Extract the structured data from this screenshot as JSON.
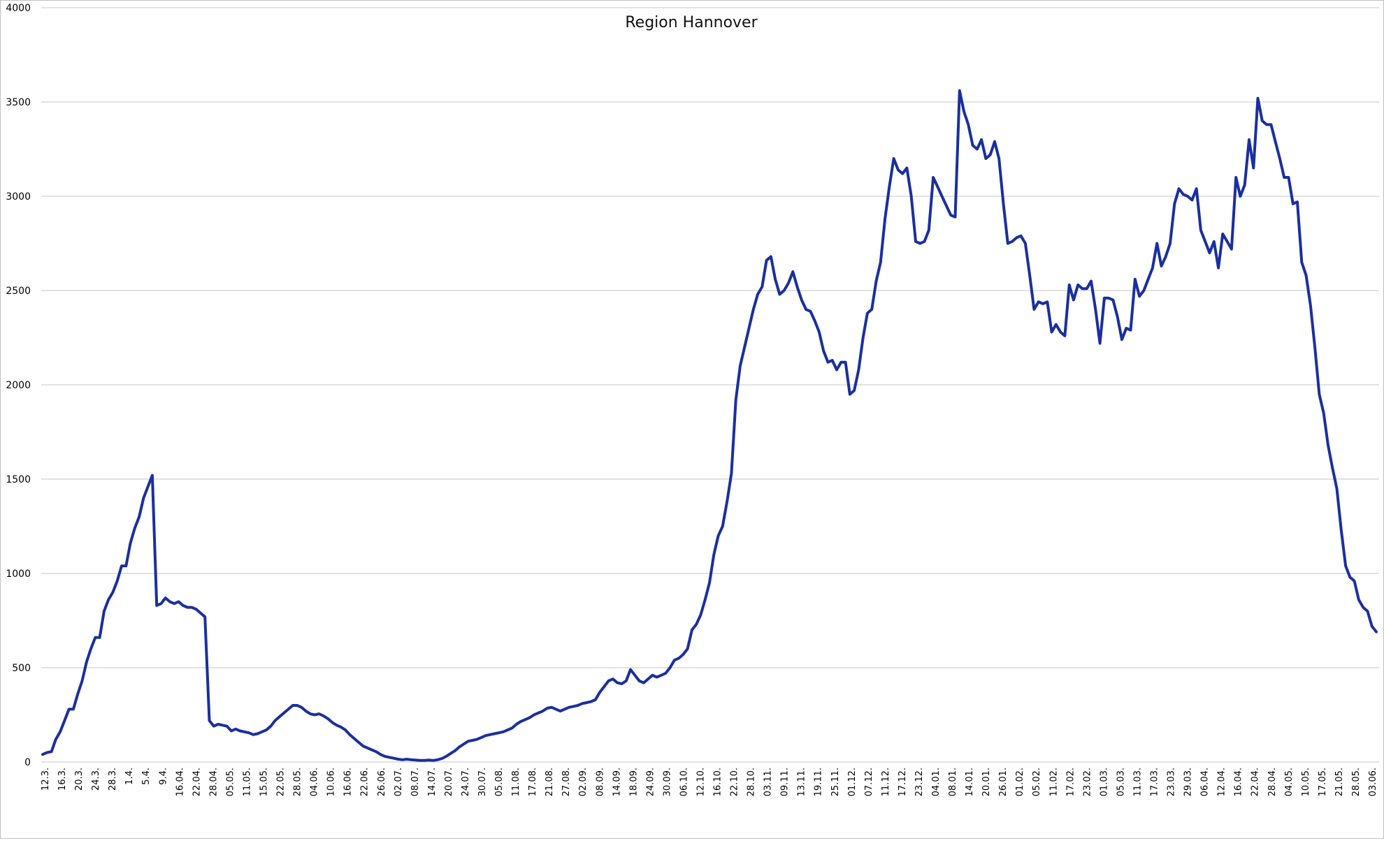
{
  "chart_data": {
    "type": "line",
    "title": "Region Hannover",
    "xlabel": "",
    "ylabel": "",
    "ylim": [
      0,
      4000
    ],
    "yticks": [
      0,
      500,
      1000,
      1500,
      2000,
      2500,
      3000,
      3500,
      4000
    ],
    "grid": "horizontal",
    "legend": "none",
    "line_color": "#1a2f9e",
    "x_ticks": [
      "12.3.",
      "16.3.",
      "20.3.",
      "24.3.",
      "28.3.",
      "1.4.",
      "5.4.",
      "9.4.",
      "16.04.",
      "22.04.",
      "28.04.",
      "05.05.",
      "11.05.",
      "15.05.",
      "22.05.",
      "28.05.",
      "04.06.",
      "10.06.",
      "16.06.",
      "22.06.",
      "26.06.",
      "02.07.",
      "08.07.",
      "14.07.",
      "20.07.",
      "24.07.",
      "30.07.",
      "05.08.",
      "11.08.",
      "17.08.",
      "21.08.",
      "27.08.",
      "02.09.",
      "08.09.",
      "14.09.",
      "18.09.",
      "24.09.",
      "30.09.",
      "06.10.",
      "12.10.",
      "16.10.",
      "22.10.",
      "28.10.",
      "03.11.",
      "09.11.",
      "13.11.",
      "19.11.",
      "25.11.",
      "01.12.",
      "07.12.",
      "11.12.",
      "17.12.",
      "23.12.",
      "04.01.",
      "08.01.",
      "14.01.",
      "20.01.",
      "26.01.",
      "01.02.",
      "05.02.",
      "11.02.",
      "17.02.",
      "23.02.",
      "01.03.",
      "05.03.",
      "11.03.",
      "17.03.",
      "23.03.",
      "29.03.",
      "06.04.",
      "12.04.",
      "16.04.",
      "22.04.",
      "28.04.",
      "04.05.",
      "10.05.",
      "17.05.",
      "21.05.",
      "28.05.",
      "03.06."
    ],
    "series": [
      {
        "values": [
          40,
          50,
          55,
          120,
          160,
          220,
          280,
          280,
          360,
          430,
          530,
          600,
          660,
          660,
          800,
          860,
          900,
          960,
          1040,
          1040,
          1160,
          1240,
          1300,
          1400,
          1460,
          1520,
          830,
          840,
          870,
          850,
          840,
          850,
          830,
          820,
          820,
          810,
          790,
          770,
          220,
          190,
          200,
          195,
          190,
          165,
          175,
          165,
          160,
          155,
          145,
          150,
          160,
          170,
          190,
          220,
          240,
          260,
          280,
          300,
          300,
          290,
          270,
          255,
          250,
          255,
          245,
          230,
          210,
          195,
          185,
          170,
          145,
          125,
          105,
          85,
          75,
          65,
          55,
          40,
          30,
          25,
          20,
          15,
          12,
          15,
          12,
          10,
          8,
          8,
          10,
          8,
          12,
          18,
          30,
          45,
          60,
          80,
          95,
          110,
          115,
          120,
          130,
          140,
          145,
          150,
          155,
          160,
          170,
          180,
          200,
          215,
          225,
          235,
          250,
          260,
          270,
          285,
          290,
          280,
          270,
          280,
          290,
          295,
          300,
          310,
          315,
          320,
          330,
          370,
          400,
          430,
          440,
          420,
          415,
          430,
          490,
          460,
          430,
          420,
          440,
          460,
          450,
          460,
          470,
          500,
          540,
          550,
          570,
          600,
          700,
          730,
          780,
          860,
          950,
          1100,
          1200,
          1250,
          1380,
          1530,
          1920,
          2100,
          2200,
          2300,
          2400,
          2480,
          2520,
          2660,
          2680,
          2560,
          2480,
          2500,
          2540,
          2600,
          2520,
          2450,
          2400,
          2390,
          2340,
          2280,
          2180,
          2120,
          2130,
          2080,
          2120,
          2120,
          1950,
          1970,
          2080,
          2250,
          2380,
          2400,
          2550,
          2650,
          2880,
          3050,
          3200,
          3140,
          3120,
          3150,
          3000,
          2760,
          2750,
          2760,
          2820,
          3100,
          3050,
          3000,
          2950,
          2900,
          2890,
          3560,
          3450,
          3380,
          3270,
          3250,
          3300,
          3200,
          3220,
          3290,
          3200,
          2960,
          2750,
          2760,
          2780,
          2790,
          2750,
          2580,
          2400,
          2440,
          2430,
          2440,
          2280,
          2320,
          2280,
          2260,
          2530,
          2450,
          2530,
          2510,
          2510,
          2550,
          2400,
          2220,
          2460,
          2460,
          2450,
          2360,
          2240,
          2300,
          2290,
          2560,
          2470,
          2500,
          2560,
          2620,
          2750,
          2630,
          2680,
          2750,
          2960,
          3040,
          3010,
          3000,
          2980,
          3040,
          2820,
          2760,
          2700,
          2760,
          2620,
          2800,
          2760,
          2720,
          3100,
          3000,
          3060,
          3300,
          3150,
          3520,
          3400,
          3380,
          3380,
          3290,
          3200,
          3100,
          3100,
          2960,
          2970,
          2650,
          2580,
          2420,
          2200,
          1950,
          1850,
          1680,
          1560,
          1450,
          1230,
          1040,
          980,
          960,
          860,
          820,
          800,
          720,
          690
        ]
      }
    ]
  }
}
